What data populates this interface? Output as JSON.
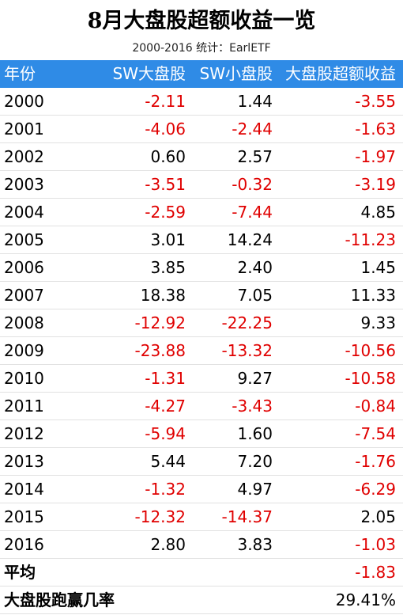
{
  "header": {
    "title": "8月大盘股超额收益一览",
    "subtitle": "2000-2016  统计：EarlETF"
  },
  "table": {
    "columns": [
      "年份",
      "SW大盘股",
      "SW小盘股",
      "大盘股超额收益"
    ],
    "rows": [
      [
        "2000",
        "-2.11",
        "1.44",
        "-3.55"
      ],
      [
        "2001",
        "-4.06",
        "-2.44",
        "-1.63"
      ],
      [
        "2002",
        "0.60",
        "2.57",
        "-1.97"
      ],
      [
        "2003",
        "-3.51",
        "-0.32",
        "-3.19"
      ],
      [
        "2004",
        "-2.59",
        "-7.44",
        "4.85"
      ],
      [
        "2005",
        "3.01",
        "14.24",
        "-11.23"
      ],
      [
        "2006",
        "3.85",
        "2.40",
        "1.45"
      ],
      [
        "2007",
        "18.38",
        "7.05",
        "11.33"
      ],
      [
        "2008",
        "-12.92",
        "-22.25",
        "9.33"
      ],
      [
        "2009",
        "-23.88",
        "-13.32",
        "-10.56"
      ],
      [
        "2010",
        "-1.31",
        "9.27",
        "-10.58"
      ],
      [
        "2011",
        "-4.27",
        "-3.43",
        "-0.84"
      ],
      [
        "2012",
        "-5.94",
        "1.60",
        "-7.54"
      ],
      [
        "2013",
        "5.44",
        "7.20",
        "-1.76"
      ],
      [
        "2014",
        "-1.32",
        "4.97",
        "-6.29"
      ],
      [
        "2015",
        "-12.32",
        "-14.37",
        "2.05"
      ],
      [
        "2016",
        "2.80",
        "3.83",
        "-1.03"
      ]
    ],
    "summary": [
      {
        "label": "平均",
        "value": "-1.83"
      },
      {
        "label": "大盘股跑赢几率",
        "value": "29.41%"
      }
    ]
  }
}
